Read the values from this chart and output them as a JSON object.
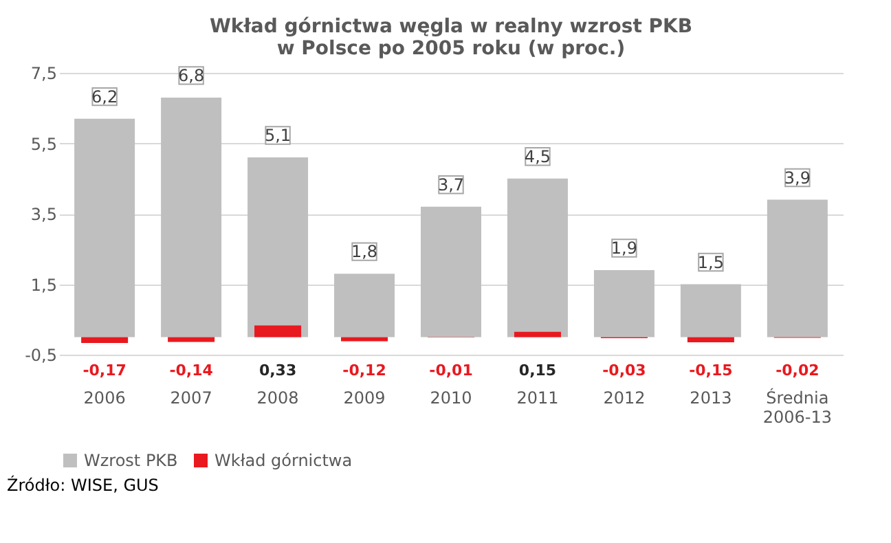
{
  "chart_data": {
    "type": "bar",
    "title": [
      "Wkład górnictwa węgla w realny wzrost PKB",
      "w Polsce po 2005 roku (w proc.)"
    ],
    "categories": [
      "2006",
      "2007",
      "2008",
      "2009",
      "2010",
      "2011",
      "2012",
      "2013",
      "Średnia 2006-13"
    ],
    "series": [
      {
        "name": "Wzrost PKB",
        "color": "#bfbfbf",
        "values": [
          6.2,
          6.8,
          5.1,
          1.8,
          3.7,
          4.5,
          1.9,
          1.5,
          3.9
        ],
        "value_labels": [
          "6,2",
          "6,8",
          "5,1",
          "1,8",
          "3,7",
          "4,5",
          "1,9",
          "1,5",
          "3,9"
        ]
      },
      {
        "name": "Wkład górnictwa",
        "color": "#e8191f",
        "values": [
          -0.17,
          -0.14,
          0.33,
          -0.12,
          -0.01,
          0.15,
          -0.03,
          -0.15,
          -0.02
        ],
        "value_labels": [
          "-0,17",
          "-0,14",
          "0,33",
          "-0,12",
          "-0,01",
          "0,15",
          "-0,03",
          "-0,15",
          "-0,02"
        ]
      }
    ],
    "ylim": [
      -0.5,
      7.5
    ],
    "yticks": [
      {
        "value": -0.5,
        "label": "-0,5"
      },
      {
        "value": 1.5,
        "label": "1,5"
      },
      {
        "value": 3.5,
        "label": "3,5"
      },
      {
        "value": 5.5,
        "label": "5,5"
      },
      {
        "value": 7.5,
        "label": "7,5"
      }
    ],
    "grid": "y",
    "legend": "bottom",
    "annotations": [
      "Źródło: WISE, GUS"
    ]
  }
}
